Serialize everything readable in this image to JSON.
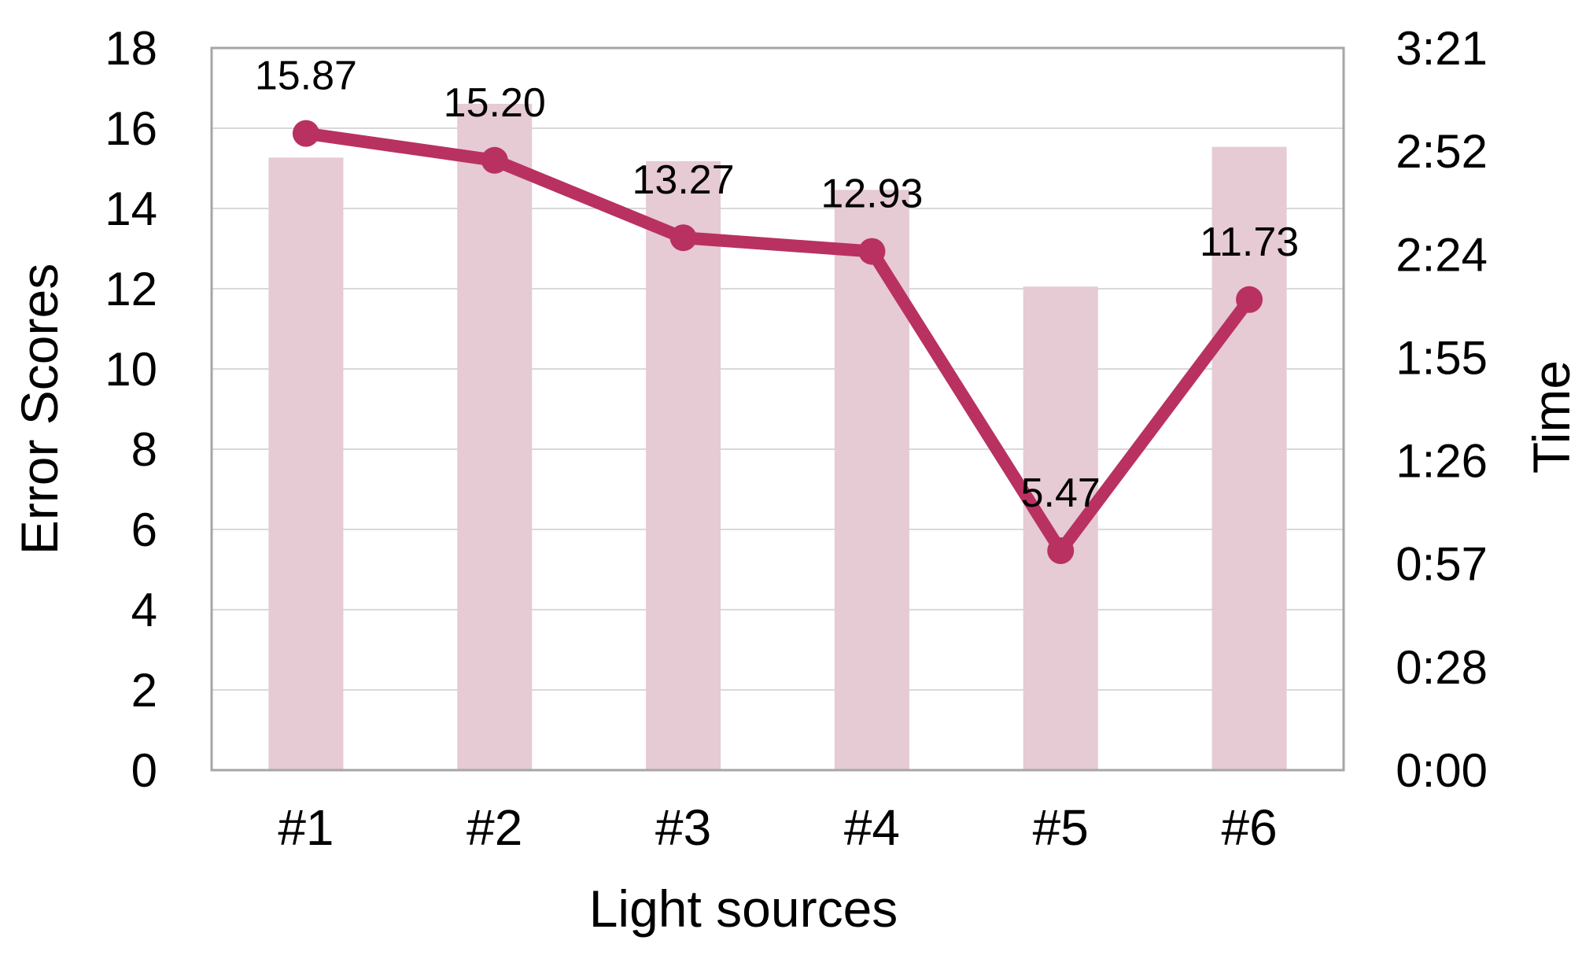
{
  "figure": {
    "background": "#ffffff"
  },
  "chart_data": {
    "type": "combo",
    "categories": [
      "#1",
      "#2",
      "#3",
      "#4",
      "#5",
      "#6"
    ],
    "series": [
      {
        "name": "Time",
        "type": "bar",
        "axis": "right",
        "values_minutes": [
          171,
          186,
          170,
          162,
          135,
          174
        ],
        "values_time": [
          "2:51",
          "3:06",
          "2:50",
          "2:42",
          "2:15",
          "2:54"
        ],
        "color": "#e6cad4"
      },
      {
        "name": "Error Scores",
        "type": "line",
        "axis": "left",
        "values": [
          15.87,
          15.2,
          13.27,
          12.93,
          5.47,
          11.73
        ],
        "data_labels": [
          "15.87",
          "15.20",
          "13.27",
          "12.93",
          "5.47",
          "11.73"
        ],
        "color": "#b93161",
        "label_color": "#9b2d53"
      }
    ],
    "x_axis": {
      "title": "Light sources",
      "tick_labels": [
        "#1",
        "#2",
        "#3",
        "#4",
        "#5",
        "#6"
      ]
    },
    "left_axis": {
      "title": "Error Scores",
      "min": 0,
      "max": 18,
      "tick_step": 2,
      "tick_labels": [
        "0",
        "2",
        "4",
        "6",
        "8",
        "10",
        "12",
        "14",
        "16",
        "18"
      ]
    },
    "right_axis": {
      "title": "Time",
      "min_minutes": 0,
      "max_minutes": 201.6,
      "tick_step_minutes": 28.8,
      "tick_labels": [
        "0:00",
        "0:28",
        "0:57",
        "1:26",
        "1:55",
        "2:24",
        "2:52",
        "3:21"
      ]
    },
    "grid": true,
    "legend": false,
    "gridline_color": "#d9d9d9",
    "frame_color": "#a6a6a6",
    "text_color": "#000000"
  }
}
